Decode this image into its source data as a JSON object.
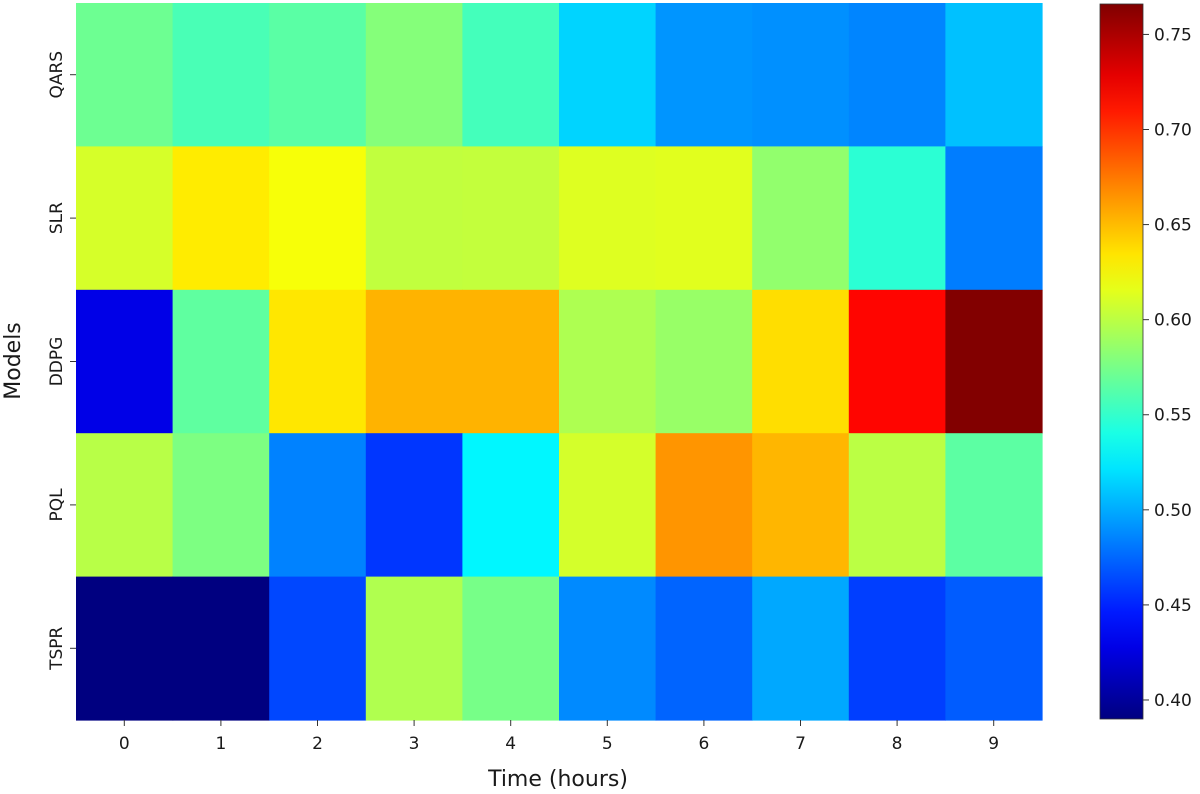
{
  "chart_data": {
    "type": "heatmap",
    "xlabel": "Time (hours)",
    "ylabel": "Models",
    "x": [
      "0",
      "1",
      "2",
      "3",
      "4",
      "5",
      "6",
      "7",
      "8",
      "9"
    ],
    "y": [
      "QARS",
      "SLR",
      "DDPG",
      "PQL",
      "TSPR"
    ],
    "values": [
      [
        0.571,
        0.558,
        0.564,
        0.58,
        0.556,
        0.515,
        0.492,
        0.49,
        0.486,
        0.508
      ],
      [
        0.61,
        0.632,
        0.622,
        0.602,
        0.603,
        0.613,
        0.614,
        0.585,
        0.547,
        0.483
      ],
      [
        0.428,
        0.566,
        0.634,
        0.653,
        0.653,
        0.595,
        0.587,
        0.637,
        0.717,
        0.765
      ],
      [
        0.599,
        0.577,
        0.485,
        0.457,
        0.528,
        0.609,
        0.664,
        0.652,
        0.6,
        0.565
      ],
      [
        0.39,
        0.39,
        0.463,
        0.596,
        0.575,
        0.488,
        0.474,
        0.499,
        0.46,
        0.471
      ]
    ],
    "colormap": "jet",
    "vmin": 0.39,
    "vmax": 0.766,
    "colorbar_ticks": [
      "0.40",
      "0.45",
      "0.50",
      "0.55",
      "0.60",
      "0.65",
      "0.70",
      "0.75"
    ],
    "grid": false,
    "legend": "colorbar-right"
  }
}
